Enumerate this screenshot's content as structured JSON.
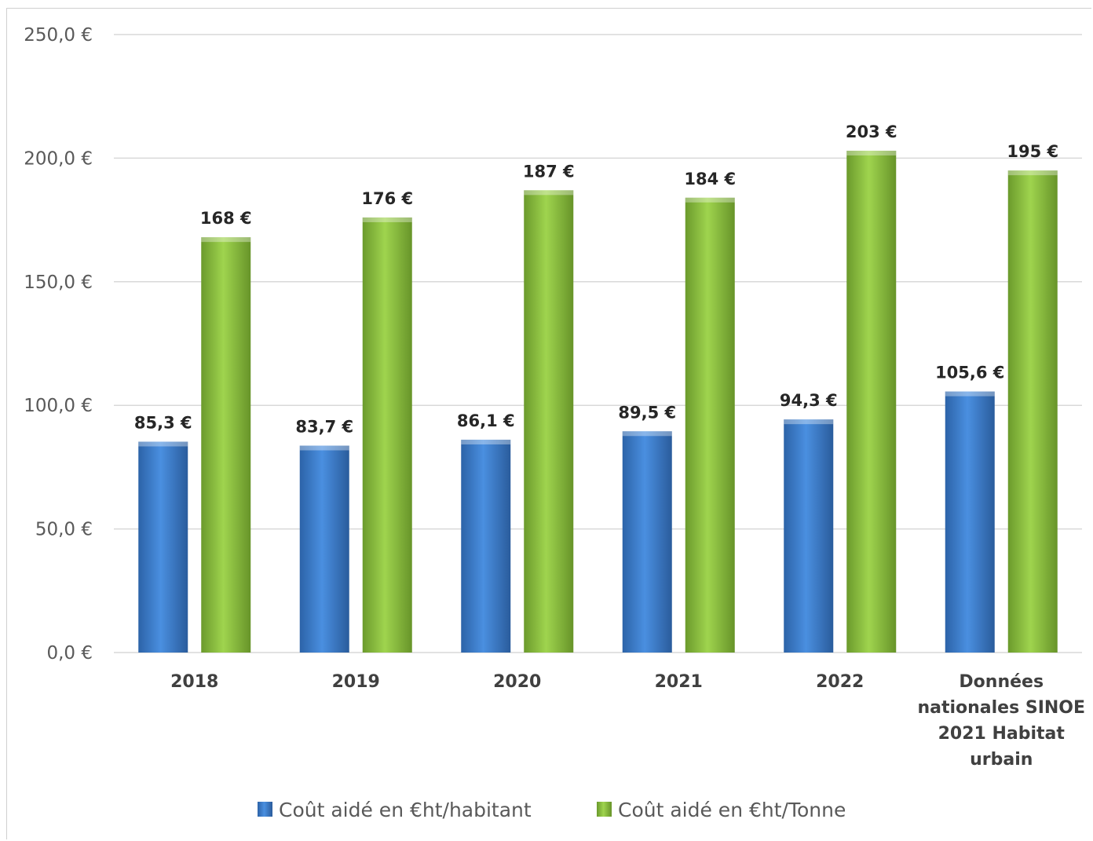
{
  "chart_data": {
    "type": "bar",
    "categories": [
      [
        "2018"
      ],
      [
        "2019"
      ],
      [
        "2020"
      ],
      [
        "2021"
      ],
      [
        "2022"
      ],
      [
        "Données",
        "nationales SINOE",
        "2021 Habitat",
        "urbain"
      ]
    ],
    "series": [
      {
        "name": "Coût aidé en €ht/habitant",
        "color": "#3a7fd5",
        "values": [
          85.3,
          83.7,
          86.1,
          89.5,
          94.3,
          105.6
        ],
        "labels": [
          "85,3 €",
          "83,7 €",
          "86,1 €",
          "89,5 €",
          "94,3 €",
          "105,6 €"
        ]
      },
      {
        "name": "Coût aidé en €ht/Tonne",
        "color": "#8cc63f",
        "values": [
          168,
          176,
          187,
          184,
          203,
          195
        ],
        "labels": [
          "168 €",
          "176 €",
          "187 €",
          "184 €",
          "203 €",
          "195 €"
        ]
      }
    ],
    "ylim": [
      0,
      250
    ],
    "yticks": [
      0,
      50,
      100,
      150,
      200,
      250
    ],
    "ytick_labels": [
      "0,0 €",
      "50,0 €",
      "100,0 €",
      "150,0 €",
      "200,0 €",
      "250,0 €"
    ],
    "grid": true,
    "legend_position": "bottom"
  }
}
